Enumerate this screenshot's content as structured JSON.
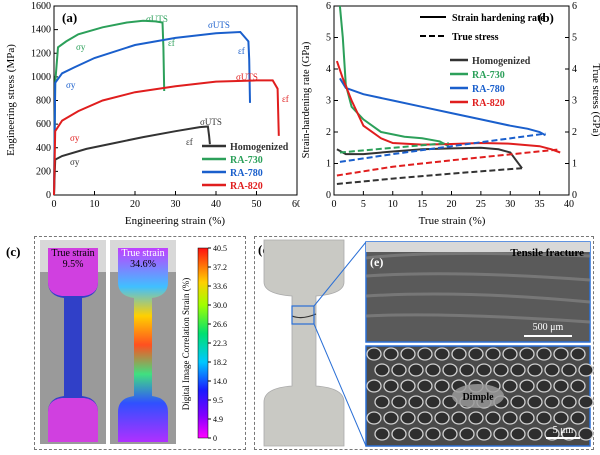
{
  "panels": {
    "a": {
      "label": "(a)",
      "xlabel": "Engineering strain (%)",
      "ylabel": "Engineering stress (MPa)",
      "xlim": [
        0,
        60
      ],
      "ylim": [
        0,
        1600
      ],
      "xticks": [
        0,
        10,
        20,
        30,
        40,
        50,
        60
      ],
      "yticks": [
        0,
        200,
        400,
        600,
        800,
        1000,
        1200,
        1400,
        1600
      ],
      "legend": [
        "Homogenized",
        "RA-730",
        "RA-780",
        "RA-820"
      ],
      "annotations": {
        "sigma_y": "σy",
        "sigma_uts": "σUTS",
        "eps_f": "εf"
      }
    },
    "b": {
      "label": "(b)",
      "xlabel": "True strain (%)",
      "ylabel_left": "Strain-hardening rate (GPa)",
      "ylabel_right": "True stress (GPa)",
      "xlim": [
        0,
        40
      ],
      "ylim_left": [
        0,
        6
      ],
      "ylim_right": [
        0,
        6
      ],
      "xticks": [
        0,
        5,
        10,
        15,
        20,
        25,
        30,
        35,
        40
      ],
      "yticks": [
        0,
        1,
        2,
        3,
        4,
        5,
        6
      ],
      "legend_solid": "Strain hardening rate",
      "legend_dashed": "True stress",
      "legend": [
        "Homogenized",
        "RA-730",
        "RA-780",
        "RA-820"
      ]
    },
    "c": {
      "label": "(c)",
      "strain_left": "True strain",
      "strain_left_val": "9.5%",
      "strain_right": "True strain",
      "strain_right_val": "34.6%",
      "colorbar_label": "Digital Image Correlation Strain (%)",
      "colorbar_ticks": [
        "40.5",
        "37.2",
        "33.6",
        "30.0",
        "26.6",
        "22.3",
        "18.2",
        "14.0",
        "9.5",
        "4.9",
        "0"
      ]
    },
    "d": {
      "label": "(d)"
    },
    "e": {
      "label": "(e)",
      "title": "Tensile fracture",
      "scale_top": "500 μm",
      "dimple": "Dimple",
      "scale_bottom": "5 μm"
    }
  },
  "colors": {
    "Homogenized": "#333333",
    "RA-730": "#2ca05a",
    "RA-780": "#1a5fcc",
    "RA-820": "#e01e1e"
  },
  "chart_data": [
    {
      "type": "line",
      "title": "",
      "xlabel": "Engineering strain (%)",
      "ylabel": "Engineering stress (MPa)",
      "xlim": [
        0,
        60
      ],
      "ylim": [
        0,
        1600
      ],
      "series": [
        {
          "name": "Homogenized",
          "x": [
            0,
            0.3,
            2,
            8,
            15,
            22,
            30,
            36,
            38,
            38.3,
            38.5
          ],
          "y": [
            0,
            300,
            330,
            390,
            440,
            490,
            540,
            575,
            580,
            500,
            430
          ]
        },
        {
          "name": "RA-730",
          "x": [
            0,
            0.3,
            1,
            3,
            6,
            12,
            18,
            22,
            25,
            26.8,
            27,
            27.2
          ],
          "y": [
            0,
            950,
            1250,
            1300,
            1360,
            1420,
            1460,
            1475,
            1470,
            1460,
            1250,
            880
          ]
        },
        {
          "name": "RA-780",
          "x": [
            0,
            0.3,
            2,
            5,
            10,
            20,
            30,
            40,
            46,
            48,
            48.2,
            48.4
          ],
          "y": [
            0,
            950,
            1030,
            1080,
            1160,
            1270,
            1330,
            1370,
            1380,
            1300,
            1150,
            780
          ]
        },
        {
          "name": "RA-820",
          "x": [
            0,
            0.3,
            2,
            6,
            12,
            20,
            30,
            40,
            50,
            54,
            55.2,
            55.5
          ],
          "y": [
            0,
            540,
            630,
            710,
            800,
            870,
            920,
            960,
            970,
            970,
            900,
            500
          ]
        }
      ]
    },
    {
      "type": "line",
      "title": "",
      "xlabel": "True strain (%)",
      "ylabel": "Strain-hardening rate (GPa)",
      "y2label": "True stress (GPa)",
      "xlim": [
        0,
        40
      ],
      "ylim": [
        0,
        6
      ],
      "series": [
        {
          "name": "Homogenized",
          "style": "solid",
          "x": [
            0.5,
            2,
            5,
            10,
            15,
            20,
            25,
            28,
            30,
            31,
            32
          ],
          "y": [
            1.45,
            1.3,
            1.3,
            1.38,
            1.45,
            1.48,
            1.5,
            1.45,
            1.35,
            1.1,
            0.85
          ]
        },
        {
          "name": "RA-730",
          "style": "solid",
          "x": [
            1,
            1.5,
            2,
            3,
            5,
            8,
            12,
            15,
            18,
            19.5
          ],
          "y": [
            6.0,
            5.0,
            3.5,
            2.8,
            2.4,
            2.0,
            1.85,
            1.8,
            1.7,
            1.55
          ]
        },
        {
          "name": "RA-780",
          "style": "solid",
          "x": [
            1,
            2,
            5,
            10,
            15,
            20,
            25,
            30,
            33,
            35,
            36
          ],
          "y": [
            3.7,
            3.4,
            3.2,
            3.0,
            2.8,
            2.6,
            2.4,
            2.2,
            2.1,
            2.0,
            1.9
          ]
        },
        {
          "name": "RA-820",
          "style": "solid",
          "x": [
            0.5,
            1.5,
            3,
            5,
            8,
            10,
            15,
            20,
            25,
            30,
            35,
            37,
            38.5
          ],
          "y": [
            4.25,
            3.7,
            3.0,
            2.2,
            1.8,
            1.65,
            1.6,
            1.62,
            1.65,
            1.63,
            1.55,
            1.45,
            1.35
          ]
        },
        {
          "name": "Homogenized",
          "style": "dashed",
          "x": [
            0.5,
            10,
            20,
            32
          ],
          "y": [
            0.35,
            0.52,
            0.68,
            0.85
          ]
        },
        {
          "name": "RA-730",
          "style": "dashed",
          "x": [
            1,
            10,
            19.5
          ],
          "y": [
            1.35,
            1.5,
            1.65
          ]
        },
        {
          "name": "RA-780",
          "style": "dashed",
          "x": [
            1,
            10,
            20,
            36
          ],
          "y": [
            1.05,
            1.3,
            1.55,
            1.95
          ]
        },
        {
          "name": "RA-820",
          "style": "dashed",
          "x": [
            0.5,
            10,
            20,
            38.5
          ],
          "y": [
            0.62,
            0.9,
            1.1,
            1.45
          ]
        }
      ]
    }
  ]
}
